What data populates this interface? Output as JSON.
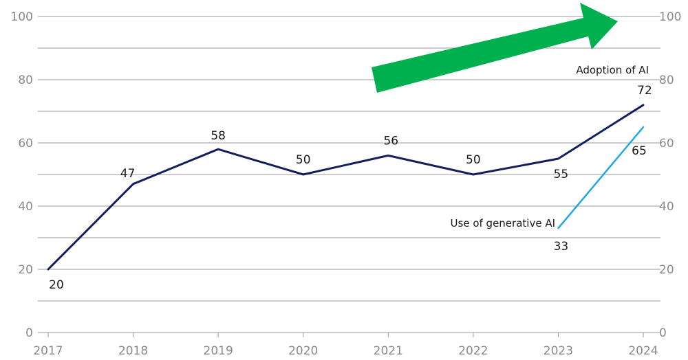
{
  "chart_data": {
    "type": "line",
    "title": "",
    "xlabel": "",
    "ylabel": "",
    "x": [
      "2017",
      "2018",
      "2019",
      "2020",
      "2021",
      "2022",
      "2023",
      "2024"
    ],
    "ylim": [
      0,
      100
    ],
    "yticks": [
      "0",
      "20",
      "40",
      "60",
      "80",
      "100"
    ],
    "grid": true,
    "series": [
      {
        "name": "Adoption of AI",
        "color": "#14205e",
        "x": [
          "2017",
          "2018",
          "2019",
          "2020",
          "2021",
          "2022",
          "2023",
          "2024"
        ],
        "values": [
          20,
          47,
          58,
          50,
          56,
          50,
          55,
          72
        ],
        "labels": [
          "20",
          "47",
          "58",
          "50",
          "56",
          "50",
          "55",
          "72"
        ]
      },
      {
        "name": "Use of generative AI",
        "color": "#1ea7e1",
        "x": [
          "2023",
          "2024"
        ],
        "values": [
          33,
          65
        ],
        "labels": [
          "33",
          "65"
        ]
      }
    ],
    "annotation": {
      "shape": "arrow",
      "color": "#00b04f",
      "direction": "up-right"
    }
  }
}
